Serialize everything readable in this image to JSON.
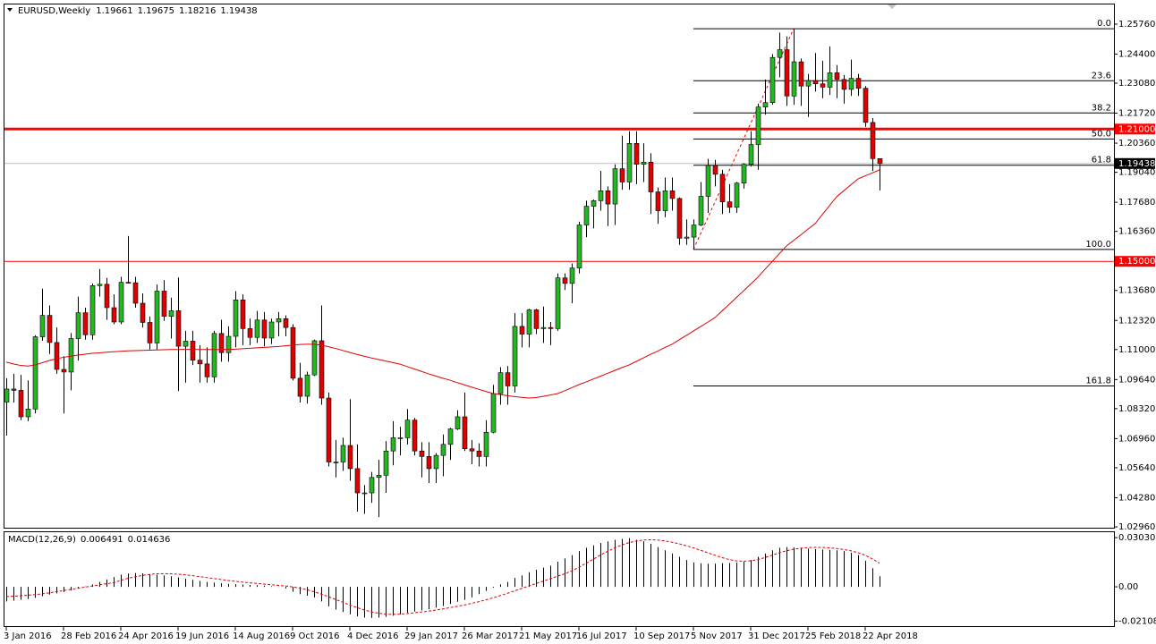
{
  "chart_data": [
    {
      "type": "candlestick",
      "title": "EURUSD,Weekly",
      "categories": [
        "3 Jan 2016",
        null,
        null,
        null,
        null,
        null,
        null,
        null,
        "28 Feb 2016",
        null,
        null,
        null,
        null,
        null,
        null,
        null,
        "24 Apr 2016",
        null,
        null,
        null,
        null,
        null,
        null,
        null,
        "19 Jun 2016",
        null,
        null,
        null,
        null,
        null,
        null,
        null,
        "14 Aug 2016",
        null,
        null,
        null,
        null,
        null,
        null,
        null,
        "9 Oct 2016",
        null,
        null,
        null,
        null,
        null,
        null,
        null,
        "4 Dec 2016",
        null,
        null,
        null,
        null,
        null,
        null,
        null,
        "29 Jan 2017",
        null,
        null,
        null,
        null,
        null,
        null,
        null,
        "26 Mar 2017",
        null,
        null,
        null,
        null,
        null,
        null,
        null,
        "21 May 2017",
        null,
        null,
        null,
        null,
        null,
        null,
        null,
        "16 Jul 2017",
        null,
        null,
        null,
        null,
        null,
        null,
        null,
        "10 Sep 2017",
        null,
        null,
        null,
        null,
        null,
        null,
        null,
        "5 Nov 2017",
        null,
        null,
        null,
        null,
        null,
        null,
        null,
        "31 Dec 2017",
        null,
        null,
        null,
        null,
        null,
        null,
        null,
        "25 Feb 2018",
        null,
        null,
        null,
        null,
        null,
        null,
        null,
        "22 Apr 2018",
        null,
        null
      ],
      "open": [
        1.0862,
        1.0921,
        1.0915,
        1.0795,
        1.083,
        1.1158,
        1.1255,
        1.1132,
        1.101,
        1.0998,
        1.115,
        1.1267,
        1.1167,
        1.139,
        1.1396,
        1.129,
        1.1225,
        1.1405,
        1.1403,
        1.131,
        1.1223,
        1.113,
        1.1365,
        1.1251,
        1.1276,
        1.1115,
        1.1138,
        1.1052,
        1.1035,
        1.0976,
        1.1173,
        1.1086,
        1.116,
        1.1325,
        1.1195,
        1.1155,
        1.1234,
        1.1152,
        1.1225,
        1.124,
        1.12,
        1.097,
        1.0888,
        1.0985,
        1.114,
        1.088,
        1.059,
        1.059,
        1.0665,
        1.056,
        1.045,
        1.045,
        1.052,
        1.053,
        1.064,
        1.07,
        1.07,
        1.078,
        1.064,
        1.0615,
        1.056,
        1.062,
        1.067,
        1.074,
        1.0795,
        1.065,
        1.064,
        1.0615,
        1.0725,
        1.09,
        1.0995,
        1.0935,
        1.1205,
        1.117,
        1.128,
        1.1195,
        1.12,
        1.1195,
        1.1425,
        1.14,
        1.147,
        1.1665,
        1.175,
        1.1775,
        1.182,
        1.176,
        1.192,
        1.186,
        1.2035,
        1.194,
        1.195,
        1.1815,
        1.173,
        1.182,
        1.1785,
        1.1605,
        1.161,
        1.1665,
        1.1795,
        1.1935,
        1.1895,
        1.177,
        1.1745,
        1.1855,
        1.194,
        1.203,
        1.22,
        1.222,
        1.2425,
        1.246,
        1.225,
        1.2405,
        1.2295,
        1.232,
        1.2305,
        1.229,
        1.2355,
        1.2325,
        1.228,
        1.233,
        1.2285,
        1.213,
        1.19661
      ],
      "high": [
        1.097,
        1.099,
        1.0985,
        1.096,
        1.1165,
        1.1376,
        1.13,
        1.12,
        1.107,
        1.1175,
        1.134,
        1.129,
        1.14,
        1.1465,
        1.1425,
        1.135,
        1.143,
        1.1615,
        1.143,
        1.1355,
        1.125,
        1.1395,
        1.1415,
        1.1335,
        1.1427,
        1.1185,
        1.1185,
        1.112,
        1.111,
        1.1185,
        1.1235,
        1.1205,
        1.1365,
        1.135,
        1.124,
        1.1275,
        1.127,
        1.124,
        1.127,
        1.1255,
        1.1215,
        1.104,
        1.1,
        1.1145,
        1.13,
        1.0905,
        1.069,
        1.07,
        1.0875,
        1.067,
        1.0485,
        1.0545,
        1.06,
        1.0685,
        1.0775,
        1.075,
        1.083,
        1.079,
        1.068,
        1.068,
        1.063,
        1.0715,
        1.0745,
        1.0825,
        1.0905,
        1.069,
        1.0675,
        1.078,
        1.094,
        1.102,
        1.1025,
        1.1265,
        1.1265,
        1.1285,
        1.1285,
        1.1295,
        1.1225,
        1.1445,
        1.1445,
        1.149,
        1.168,
        1.1775,
        1.178,
        1.191,
        1.184,
        1.194,
        1.207,
        1.209,
        1.209,
        1.2035,
        1.199,
        1.1835,
        1.188,
        1.188,
        1.179,
        1.169,
        1.169,
        1.186,
        1.1965,
        1.196,
        1.1915,
        1.185,
        1.186,
        1.1945,
        1.209,
        1.2215,
        1.2325,
        1.244,
        1.2537,
        1.252,
        1.2555,
        1.242,
        1.235,
        1.2445,
        1.241,
        1.2475,
        1.239,
        1.2345,
        1.2415,
        1.235,
        1.2295,
        1.215,
        1.19675
      ],
      "low": [
        1.071,
        1.086,
        1.078,
        1.0775,
        1.081,
        1.114,
        1.108,
        1.099,
        1.081,
        1.0915,
        1.105,
        1.1145,
        1.1145,
        1.134,
        1.1235,
        1.1215,
        1.1215,
        1.14,
        1.129,
        1.12,
        1.11,
        1.11,
        1.123,
        1.115,
        1.0912,
        1.095,
        1.103,
        1.095,
        1.095,
        1.095,
        1.1045,
        1.1045,
        1.111,
        1.112,
        1.112,
        1.113,
        1.1115,
        1.1125,
        1.116,
        1.116,
        1.096,
        1.086,
        1.0855,
        1.098,
        1.085,
        1.057,
        1.052,
        1.055,
        1.0505,
        1.0365,
        1.0355,
        1.0405,
        1.034,
        1.045,
        1.0575,
        1.062,
        1.067,
        1.062,
        1.052,
        1.0495,
        1.0495,
        1.0525,
        1.06,
        1.0735,
        1.064,
        1.058,
        1.057,
        1.057,
        1.072,
        1.085,
        1.085,
        1.0905,
        1.111,
        1.111,
        1.117,
        1.113,
        1.112,
        1.1185,
        1.137,
        1.131,
        1.1445,
        1.161,
        1.165,
        1.173,
        1.166,
        1.1665,
        1.1825,
        1.1825,
        1.185,
        1.186,
        1.1715,
        1.167,
        1.17,
        1.173,
        1.1575,
        1.1575,
        1.1554,
        1.166,
        1.172,
        1.184,
        1.1715,
        1.172,
        1.172,
        1.183,
        1.193,
        1.1915,
        1.2165,
        1.221,
        1.2335,
        1.2205,
        1.221,
        1.2205,
        1.2155,
        1.227,
        1.224,
        1.2255,
        1.224,
        1.2215,
        1.225,
        1.225,
        1.211,
        1.191,
        1.18216
      ],
      "close": [
        1.0921,
        1.0915,
        1.0795,
        1.083,
        1.1158,
        1.1255,
        1.1132,
        1.101,
        1.0998,
        1.115,
        1.1267,
        1.1167,
        1.139,
        1.1396,
        1.129,
        1.1225,
        1.1405,
        1.1403,
        1.131,
        1.1223,
        1.113,
        1.1365,
        1.1251,
        1.1276,
        1.1115,
        1.1138,
        1.1052,
        1.1035,
        1.0976,
        1.1173,
        1.1086,
        1.116,
        1.1325,
        1.1195,
        1.1155,
        1.1234,
        1.1152,
        1.1225,
        1.124,
        1.12,
        1.097,
        1.0888,
        1.0985,
        1.114,
        1.088,
        1.059,
        1.059,
        1.0665,
        1.056,
        1.045,
        1.045,
        1.052,
        1.053,
        1.064,
        1.07,
        1.07,
        1.078,
        1.064,
        1.0615,
        1.056,
        1.062,
        1.067,
        1.074,
        1.0795,
        1.065,
        1.064,
        1.0615,
        1.0725,
        1.09,
        1.0995,
        1.0935,
        1.1205,
        1.117,
        1.128,
        1.1195,
        1.12,
        1.1195,
        1.1425,
        1.14,
        1.147,
        1.1665,
        1.175,
        1.1775,
        1.182,
        1.176,
        1.192,
        1.186,
        1.2035,
        1.194,
        1.195,
        1.1815,
        1.173,
        1.182,
        1.1785,
        1.1605,
        1.161,
        1.1665,
        1.1795,
        1.1935,
        1.1895,
        1.177,
        1.1745,
        1.1855,
        1.194,
        1.203,
        1.22,
        1.222,
        1.2425,
        1.246,
        1.225,
        1.2405,
        1.2295,
        1.232,
        1.2305,
        1.229,
        1.2355,
        1.2325,
        1.228,
        1.233,
        1.2285,
        1.213,
        1.1966,
        1.19438
      ],
      "bull_color": "#22b822",
      "bear_color": "#e00000",
      "ma": {
        "color": "#e00000",
        "values": [
          1.1043,
          1.1035,
          1.1028,
          1.1025,
          1.103,
          1.104,
          1.105,
          1.1058,
          1.1065,
          1.107,
          1.1075,
          1.1079,
          1.1083,
          1.1085,
          1.1088,
          1.109,
          1.1092,
          1.1094,
          1.1095,
          1.1096,
          1.1097,
          1.1098,
          1.1099,
          1.11,
          1.11,
          1.1101,
          1.1101,
          1.11,
          1.11,
          1.11,
          1.11,
          1.1101,
          1.1102,
          1.1104,
          1.1106,
          1.1108,
          1.111,
          1.1112,
          1.1114,
          1.1117,
          1.112,
          1.1123,
          1.1124,
          1.1124,
          1.112,
          1.1113,
          1.1105,
          1.1096,
          1.1087,
          1.1078,
          1.107,
          1.1062,
          1.1055,
          1.1048,
          1.1041,
          1.1034,
          1.1023,
          1.1012,
          1.1001,
          1.099,
          1.098,
          1.097,
          1.0961,
          1.095,
          1.094,
          1.093,
          1.092,
          1.091,
          1.0901,
          1.0896,
          1.0891,
          1.0887,
          1.0883,
          1.088,
          1.0882,
          1.0888,
          1.0894,
          1.09,
          1.0913,
          1.0927,
          1.0941,
          1.0953,
          1.0966,
          1.0979,
          1.0992,
          1.1005,
          1.1018,
          1.103,
          1.1046,
          1.1062,
          1.1078,
          1.1093,
          1.1109,
          1.1124,
          1.1144,
          1.1164,
          1.1184,
          1.1204,
          1.1224,
          1.1245,
          1.1275,
          1.1305,
          1.1336,
          1.1366,
          1.1397,
          1.1428,
          1.1464,
          1.1499,
          1.1535,
          1.157,
          1.1595,
          1.162,
          1.1646,
          1.1671,
          1.1712,
          1.1752,
          1.1793,
          1.182,
          1.1847,
          1.1874,
          1.1888,
          1.1901,
          1.1915
        ]
      },
      "hlines": [
        {
          "value": {
            "value": 1.21,
            "label": "1.21000"
          },
          "color": "#ff0000",
          "width": 3
        },
        {
          "value": {
            "value": 1.15,
            "label": "1.15000"
          },
          "color": "#ff0000",
          "width": 1
        }
      ],
      "fibonacci": {
        "color": "#000000",
        "trend_color": "#e00000",
        "levels": [
          {
            "level": {
              "value": 0,
              "label": "0.0"
            },
            "price": 1.2555
          },
          {
            "level": 23.6,
            "price": 1.2319
          },
          {
            "level": 38.2,
            "price": 1.2173
          },
          {
            "level": {
              "value": 50,
              "label": "50.0"
            },
            "price": 1.2055
          },
          {
            "level": 61.8,
            "price": 1.1936
          },
          {
            "level": {
              "value": 100,
              "label": "100.0"
            },
            "price": 1.1554
          },
          {
            "level": 161.8,
            "price": 1.0935
          }
        ]
      },
      "ylim": [
        1.0292,
        1.2665
      ],
      "yticks": [
        {
          "value": 1.2576,
          "label": "1.25760"
        },
        {
          "value": 1.244,
          "label": "1.24400"
        },
        {
          "value": 1.2308,
          "label": "1.23080"
        },
        {
          "value": 1.2172,
          "label": "1.21720"
        },
        {
          "value": 1.2036,
          "label": "1.20360"
        },
        {
          "value": 1.1904,
          "label": "1.19040"
        },
        {
          "value": 1.1768,
          "label": "1.17680"
        },
        {
          "value": 1.1636,
          "label": "1.16360"
        },
        {
          "value": 1.15,
          "label": "1.15000"
        },
        {
          "value": 1.1368,
          "label": "1.13680"
        },
        {
          "value": 1.1232,
          "label": "1.12320"
        },
        {
          "value": 1.11,
          "label": "1.11000"
        },
        {
          "value": 1.0964,
          "label": "1.09640"
        },
        {
          "value": 1.0832,
          "label": "1.08320"
        },
        {
          "value": 1.0696,
          "label": "1.06960"
        },
        {
          "value": 1.0564,
          "label": "1.05640"
        },
        {
          "value": 1.0428,
          "label": "1.04280"
        },
        {
          "value": 1.0296,
          "label": "1.02960"
        }
      ],
      "grid": false
    },
    {
      "type": "macd",
      "title": "MACD(12,26,9)",
      "histogram": [
        -0.009,
        -0.0085,
        -0.008,
        -0.0075,
        -0.0068,
        -0.0058,
        -0.0048,
        -0.004,
        -0.0032,
        -0.0022,
        -0.001,
        0.0002,
        0.0015,
        0.003,
        0.0045,
        0.006,
        0.0075,
        0.0082,
        0.0085,
        0.0083,
        0.0078,
        0.0075,
        0.007,
        0.0065,
        0.0058,
        0.005,
        0.0043,
        0.0036,
        0.003,
        0.0026,
        0.0022,
        0.0018,
        0.0016,
        0.0014,
        0.0012,
        0.001,
        0.0007,
        0.0004,
        0.0001,
        -0.001,
        -0.003,
        -0.0045,
        -0.0055,
        -0.0065,
        -0.009,
        -0.012,
        -0.014,
        -0.0155,
        -0.017,
        -0.0182,
        -0.019,
        -0.0192,
        -0.019,
        -0.0185,
        -0.0178,
        -0.017,
        -0.016,
        -0.0152,
        -0.0145,
        -0.0138,
        -0.0128,
        -0.0118,
        -0.0105,
        -0.0092,
        -0.008,
        -0.0065,
        -0.0045,
        -0.0025,
        -0.0005,
        0.0015,
        0.003,
        0.0055,
        0.007,
        0.009,
        0.0105,
        0.0118,
        0.013,
        0.0155,
        0.0175,
        0.0195,
        0.022,
        0.024,
        0.0255,
        0.027,
        0.028,
        0.029,
        0.0295,
        0.03,
        0.029,
        0.028,
        0.0265,
        0.0245,
        0.0225,
        0.0205,
        0.0185,
        0.0165,
        0.015,
        0.0145,
        0.0142,
        0.0143,
        0.0145,
        0.0147,
        0.015,
        0.0155,
        0.0165,
        0.0185,
        0.0205,
        0.0225,
        0.024,
        0.0245,
        0.0242,
        0.0238,
        0.0235,
        0.0232,
        0.023,
        0.0228,
        0.0225,
        0.022,
        0.021,
        0.0195,
        0.016,
        0.0115,
        0.006491
      ],
      "histogram_color": "#000000",
      "signal": {
        "color": "#e00000",
        "values": [
          -0.006,
          -0.0058,
          -0.0055,
          -0.0052,
          -0.0048,
          -0.0043,
          -0.0037,
          -0.003,
          -0.0023,
          -0.0016,
          -0.0009,
          -0.0002,
          0.0005,
          0.0012,
          0.0019,
          0.0026,
          0.004,
          0.0052,
          0.0062,
          0.007,
          0.0076,
          0.008,
          0.0081,
          0.008,
          0.0078,
          0.0074,
          0.0069,
          0.0063,
          0.0057,
          0.0051,
          0.0045,
          0.0039,
          0.0034,
          0.0029,
          0.0025,
          0.0021,
          0.0017,
          0.0013,
          0.0009,
          0.0005,
          0.0,
          -0.0008,
          -0.0018,
          -0.003,
          -0.0045,
          -0.006,
          -0.0078,
          -0.0095,
          -0.0112,
          -0.0128,
          -0.0142,
          -0.0154,
          -0.0163,
          -0.0168,
          -0.017,
          -0.0168,
          -0.0165,
          -0.016,
          -0.0155,
          -0.015,
          -0.0143,
          -0.0136,
          -0.0128,
          -0.012,
          -0.0112,
          -0.0102,
          -0.0092,
          -0.008,
          -0.0068,
          -0.0054,
          -0.004,
          -0.0025,
          -0.001,
          0.0005,
          0.002,
          0.0035,
          0.005,
          0.0065,
          0.008,
          0.0098,
          0.012,
          0.0145,
          0.017,
          0.0195,
          0.0218,
          0.024,
          0.0258,
          0.0272,
          0.0282,
          0.0288,
          0.029,
          0.0288,
          0.0283,
          0.0275,
          0.0265,
          0.0253,
          0.024,
          0.0225,
          0.021,
          0.0195,
          0.018,
          0.0168,
          0.016,
          0.0158,
          0.016,
          0.0168,
          0.018,
          0.0195,
          0.021,
          0.0222,
          0.0232,
          0.0238,
          0.0242,
          0.0243,
          0.0243,
          0.024,
          0.0236,
          0.023,
          0.0222,
          0.021,
          0.0195,
          0.0172,
          0.014636
        ]
      },
      "ylim": [
        -0.0242,
        0.0331
      ],
      "yticks": [
        0.030303,
        {
          "value": 0,
          "label": "0.00"
        },
        -0.021087
      ]
    }
  ]
}
